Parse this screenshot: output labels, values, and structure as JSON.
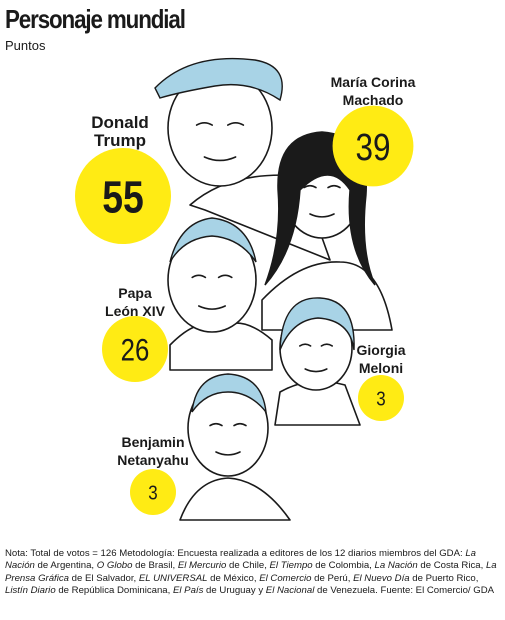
{
  "title": "Personaje mundial",
  "subtitle": "Puntos",
  "chart_data": {
    "type": "bubble",
    "title": "Personaje mundial",
    "unit": "Puntos",
    "categories": [
      "Donald Trump",
      "María Corina Machado",
      "Papa León XIV",
      "Giorgia Meloni",
      "Benjamin Netanyahu"
    ],
    "values": [
      55,
      39,
      26,
      3,
      3
    ],
    "label_lines": [
      [
        "Donald",
        "Trump"
      ],
      [
        "María Corina",
        "Machado"
      ],
      [
        "Papa",
        "León XIV"
      ],
      [
        "Giorgia",
        "Meloni"
      ],
      [
        "Benjamin",
        "Netanyahu"
      ]
    ]
  },
  "colors": {
    "bubble": "#FFEB14",
    "accent_light_blue": "#A8D3E6",
    "ink": "#1a1a1a"
  },
  "note": {
    "segments": [
      {
        "t": "Nota: Total de votos = 126 Metodología: Encuesta realizada a editores de los 12 diarios miembros del GDA: ",
        "i": false
      },
      {
        "t": "La Nación",
        "i": true
      },
      {
        "t": " de Argentina, ",
        "i": false
      },
      {
        "t": "O Globo",
        "i": true
      },
      {
        "t": " de Brasil, ",
        "i": false
      },
      {
        "t": "El Mercurio",
        "i": true
      },
      {
        "t": " de Chile, ",
        "i": false
      },
      {
        "t": "El Tiempo",
        "i": true
      },
      {
        "t": " de Colombia, ",
        "i": false
      },
      {
        "t": "La Nación",
        "i": true
      },
      {
        "t": " de Costa Rica, ",
        "i": false
      },
      {
        "t": "La Prensa Gráfica",
        "i": true
      },
      {
        "t": " de El Salvador, ",
        "i": false
      },
      {
        "t": "EL UNIVERSAL",
        "i": true
      },
      {
        "t": " de México, ",
        "i": false
      },
      {
        "t": "El Comercio",
        "i": true
      },
      {
        "t": " de Perú, ",
        "i": false
      },
      {
        "t": "El Nuevo Día",
        "i": true
      },
      {
        "t": " de Puerto Rico, ",
        "i": false
      },
      {
        "t": "Listín Diario",
        "i": true
      },
      {
        "t": " de República Dominicana, ",
        "i": false
      },
      {
        "t": "El País",
        "i": true
      },
      {
        "t": " de Uruguay y ",
        "i": false
      },
      {
        "t": "El Nacional",
        "i": true
      },
      {
        "t": " de Venezuela. Fuente: El Comercio/ GDA",
        "i": false
      }
    ]
  }
}
